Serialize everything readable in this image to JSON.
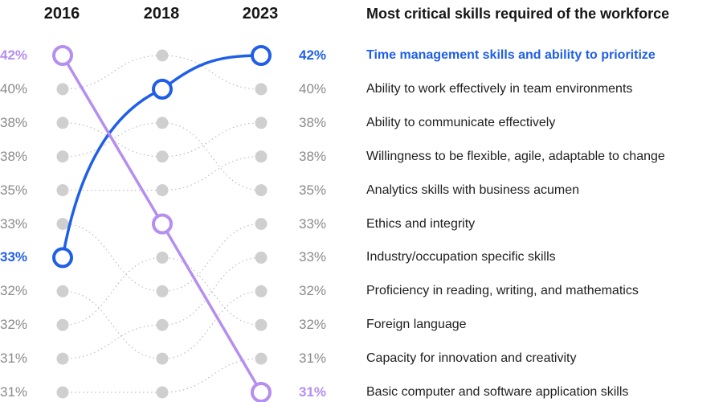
{
  "title": "Most critical skills required of the workforce",
  "colors": {
    "blue": "#1f5fe8",
    "purple": "#b48ef0",
    "grey_dot": "#cfcfcf",
    "grey_line": "#bdbdbd",
    "muted_text": "#8a8a8a"
  },
  "chart_data": {
    "type": "bump",
    "years": [
      "2016",
      "2018",
      "2023"
    ],
    "rank_values": [
      "42%",
      "40%",
      "38%",
      "38%",
      "35%",
      "33%",
      "33%",
      "32%",
      "32%",
      "31%",
      "31%"
    ],
    "skills_2023": [
      "Time management skills and ability to prioritize",
      "Ability to work effectively in team environments",
      "Ability to communicate effectively",
      "Willingness to be flexible, agile, adaptable to change",
      "Analytics skills with business acumen",
      "Ethics and integrity",
      "Industry/occupation specific skills",
      "Proficiency in reading, writing, and mathematics",
      "Foreign language",
      "Capacity for innovation and creativity",
      "Basic computer and software application skills"
    ],
    "highlighted": [
      {
        "skill": "Time management skills and ability to prioritize",
        "color": "blue",
        "ranks": [
          7,
          2,
          1
        ]
      },
      {
        "skill": "Basic computer and software application skills",
        "color": "purple",
        "ranks": [
          1,
          6,
          11
        ]
      }
    ],
    "background_paths": [
      [
        2,
        1,
        2
      ],
      [
        3,
        4,
        3
      ],
      [
        4,
        3,
        5
      ],
      [
        5,
        5,
        4
      ],
      [
        6,
        8,
        6
      ],
      [
        8,
        10,
        8
      ],
      [
        9,
        7,
        9
      ],
      [
        10,
        9,
        7
      ],
      [
        11,
        11,
        10
      ]
    ]
  }
}
